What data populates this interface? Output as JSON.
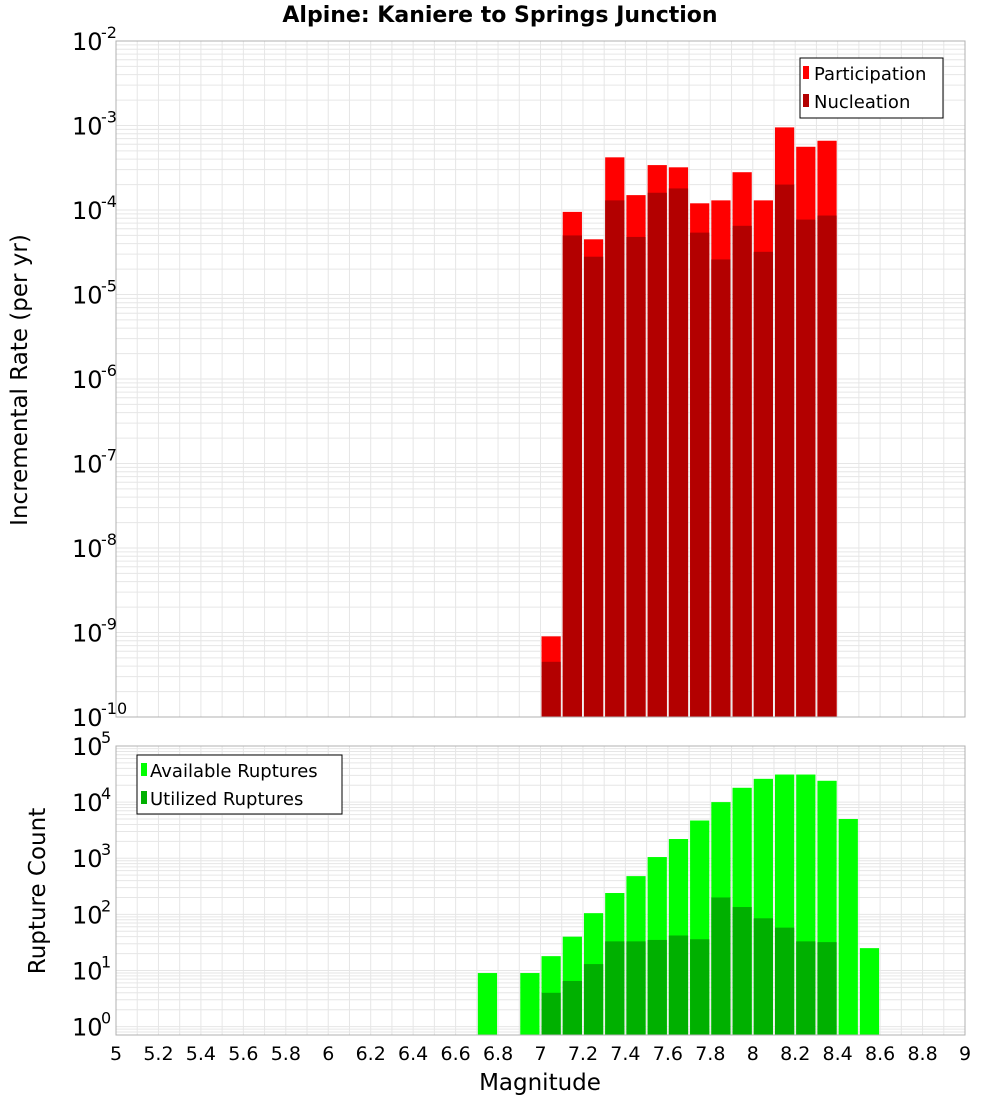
{
  "title": "Alpine: Kaniere to Springs Junction",
  "xlabel": "Magnitude",
  "colors": {
    "participation": "#ff0000",
    "nucleation": "#b30000",
    "available": "#00ff00",
    "utilized": "#00b000",
    "grid": "#e6e6e6",
    "frame": "#b0b0b0"
  },
  "chart_data": [
    {
      "type": "bar",
      "scale": "log",
      "ylabel": "Incremental Rate (per yr)",
      "xlim": [
        5,
        9
      ],
      "ylim_exp": [
        -10,
        -2
      ],
      "bin_width": 0.1,
      "legend_position": "top-right",
      "yticks": [
        {
          "base": "10",
          "exp": "-2"
        },
        {
          "base": "10",
          "exp": "-3"
        },
        {
          "base": "10",
          "exp": "-4"
        },
        {
          "base": "10",
          "exp": "-5"
        },
        {
          "base": "10",
          "exp": "-6"
        },
        {
          "base": "10",
          "exp": "-7"
        },
        {
          "base": "10",
          "exp": "-8"
        },
        {
          "base": "10",
          "exp": "-9"
        },
        {
          "base": "10",
          "exp": "-10"
        }
      ],
      "x": [
        7.05,
        7.15,
        7.25,
        7.35,
        7.45,
        7.55,
        7.65,
        7.75,
        7.85,
        7.95,
        8.05,
        8.15,
        8.25,
        8.35
      ],
      "series": [
        {
          "name": "Participation",
          "values": [
            9e-10,
            9.5e-05,
            4.5e-05,
            0.00042,
            0.00015,
            0.00034,
            0.00032,
            0.00012,
            0.00013,
            0.00028,
            0.00013,
            0.00095,
            0.00056,
            0.00066
          ]
        },
        {
          "name": "Nucleation",
          "values": [
            4.5e-10,
            5e-05,
            2.8e-05,
            0.00013,
            4.8e-05,
            0.00016,
            0.00018,
            5.4e-05,
            2.6e-05,
            6.5e-05,
            3.2e-05,
            0.0002,
            7.7e-05,
            8.6e-05
          ]
        }
      ]
    },
    {
      "type": "bar",
      "scale": "log",
      "ylabel": "Rupture Count",
      "xlim": [
        5,
        9
      ],
      "ylim_exp": [
        -0.15,
        5
      ],
      "bin_width": 0.1,
      "legend_position": "top-left",
      "yticks": [
        {
          "base": "10",
          "exp": "5"
        },
        {
          "base": "10",
          "exp": "4"
        },
        {
          "base": "10",
          "exp": "3"
        },
        {
          "base": "10",
          "exp": "2"
        },
        {
          "base": "10",
          "exp": "1"
        },
        {
          "base": "10",
          "exp": "0"
        }
      ],
      "x": [
        6.75,
        6.95,
        7.05,
        7.15,
        7.25,
        7.35,
        7.45,
        7.55,
        7.65,
        7.75,
        7.85,
        7.95,
        8.05,
        8.15,
        8.25,
        8.35,
        8.45,
        8.55
      ],
      "series": [
        {
          "name": "Available Ruptures",
          "values": [
            9,
            9,
            18,
            40,
            105,
            240,
            480,
            1050,
            2200,
            4700,
            10000,
            18000,
            26000,
            31000,
            31000,
            24000,
            5000,
            25
          ]
        },
        {
          "name": "Utilized Ruptures",
          "values": [
            null,
            null,
            4,
            6.5,
            13,
            33,
            33,
            35,
            42,
            36,
            200,
            135,
            85,
            58,
            33,
            32,
            null,
            null
          ]
        }
      ]
    }
  ],
  "xticks": [
    "5",
    "5.2",
    "5.4",
    "5.6",
    "5.8",
    "6",
    "6.2",
    "6.4",
    "6.6",
    "6.8",
    "7",
    "7.2",
    "7.4",
    "7.6",
    "7.8",
    "8",
    "8.2",
    "8.4",
    "8.6",
    "8.8",
    "9"
  ],
  "xtick_values": [
    5,
    5.2,
    5.4,
    5.6,
    5.8,
    6,
    6.2,
    6.4,
    6.6,
    6.8,
    7,
    7.2,
    7.4,
    7.6,
    7.8,
    8,
    8.2,
    8.4,
    8.6,
    8.8,
    9
  ]
}
